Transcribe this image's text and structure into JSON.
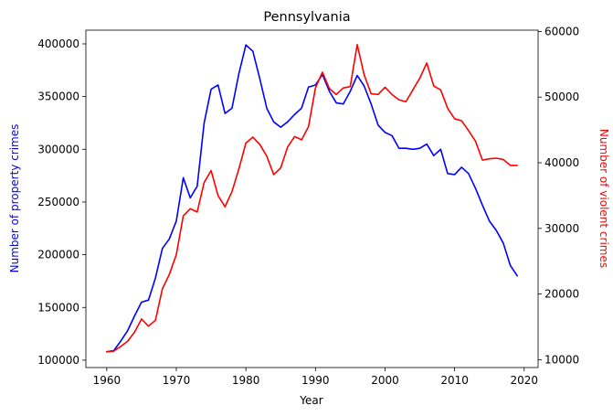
{
  "chart_data": {
    "type": "line",
    "title": "Pennsylvania",
    "xlabel": "Year",
    "ylabel_left": "Number of property crimes",
    "ylabel_right": "Number of violent crimes",
    "xlim": [
      1957,
      2022
    ],
    "ylim_left": [
      93000,
      413000
    ],
    "ylim_right": [
      8800,
      60200
    ],
    "x_ticks": [
      1960,
      1970,
      1980,
      1990,
      2000,
      2010,
      2020
    ],
    "y_ticks_left": [
      100000,
      150000,
      200000,
      250000,
      300000,
      350000,
      400000
    ],
    "y_ticks_right": [
      10000,
      20000,
      30000,
      40000,
      50000,
      60000
    ],
    "grid": false,
    "colors": {
      "left": "#0000ff",
      "right": "#ff0000"
    },
    "x": [
      1960,
      1961,
      1962,
      1963,
      1964,
      1965,
      1966,
      1967,
      1968,
      1969,
      1970,
      1971,
      1972,
      1973,
      1974,
      1975,
      1976,
      1977,
      1978,
      1979,
      1980,
      1981,
      1982,
      1983,
      1984,
      1985,
      1986,
      1987,
      1988,
      1989,
      1990,
      1991,
      1992,
      1993,
      1994,
      1995,
      1996,
      1997,
      1998,
      1999,
      2000,
      2001,
      2002,
      2003,
      2004,
      2005,
      2006,
      2007,
      2008,
      2009,
      2010,
      2011,
      2012,
      2013,
      2014,
      2015,
      2016,
      2017,
      2018,
      2019
    ],
    "series": [
      {
        "name": "Number of property crimes",
        "axis": "left",
        "color": "#0000ff",
        "values": [
          108000,
          109000,
          118000,
          128000,
          142000,
          155000,
          157000,
          178000,
          206000,
          215000,
          232000,
          273000,
          254000,
          265000,
          325000,
          357000,
          361000,
          334000,
          339000,
          372000,
          399000,
          393000,
          367000,
          339000,
          326000,
          321000,
          326000,
          333000,
          339000,
          359000,
          361000,
          371000,
          355000,
          344000,
          343000,
          355000,
          370000,
          360000,
          343000,
          323000,
          316000,
          313000,
          301000,
          301000,
          300000,
          301000,
          305000,
          294000,
          300000,
          277000,
          276000,
          283000,
          277000,
          263000,
          247000,
          232000,
          223000,
          211000,
          190000,
          180000
        ]
      },
      {
        "name": "Number of violent crimes",
        "axis": "right",
        "color": "#ff0000",
        "values": [
          11200,
          11300,
          12000,
          12800,
          14200,
          16200,
          15100,
          16000,
          20800,
          23000,
          26000,
          31900,
          33000,
          32500,
          37000,
          38800,
          35000,
          33300,
          35600,
          39100,
          43000,
          43900,
          42800,
          41000,
          38200,
          39200,
          42400,
          44000,
          43500,
          45500,
          51400,
          53800,
          51300,
          50400,
          51400,
          51600,
          58000,
          53400,
          50500,
          50400,
          51500,
          50400,
          49600,
          49300,
          51100,
          52900,
          55200,
          51700,
          51100,
          48300,
          46700,
          46400,
          44900,
          43300,
          40400,
          40600,
          40700,
          40500,
          39600,
          39600
        ]
      }
    ]
  }
}
